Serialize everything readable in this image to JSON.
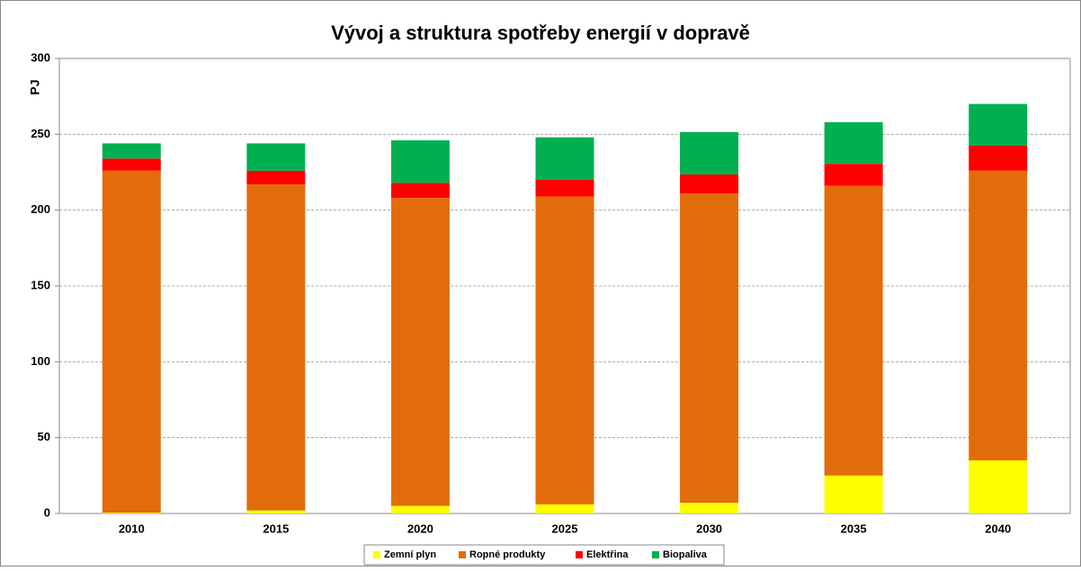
{
  "chart_data": {
    "type": "stacked_bar",
    "title": "Vývoj  a struktura spotřeby energií v dopravě",
    "y_label": "PJ",
    "categories": [
      "2010",
      "2015",
      "2020",
      "2025",
      "2030",
      "2035",
      "2040"
    ],
    "series": [
      {
        "name": "Zemní plyn",
        "color": "#ffff00",
        "values": [
          0.5,
          2,
          5,
          6,
          7,
          25,
          35
        ]
      },
      {
        "name": "Ropné produkty",
        "color": "#e36c0a",
        "values": [
          225.5,
          215,
          203,
          203,
          204,
          191,
          191
        ]
      },
      {
        "name": "Elektřina",
        "color": "#ff0000",
        "values": [
          8,
          9,
          10,
          11,
          12.5,
          14.5,
          16.5
        ]
      },
      {
        "name": "Biopaliva",
        "color": "#00b050",
        "values": [
          10,
          18,
          28,
          28,
          28,
          27.5,
          27.5
        ]
      }
    ],
    "ylim": [
      0,
      300
    ],
    "yticks": [
      0,
      50,
      100,
      150,
      200,
      250,
      300
    ],
    "grid": true,
    "legend": "bottom"
  }
}
